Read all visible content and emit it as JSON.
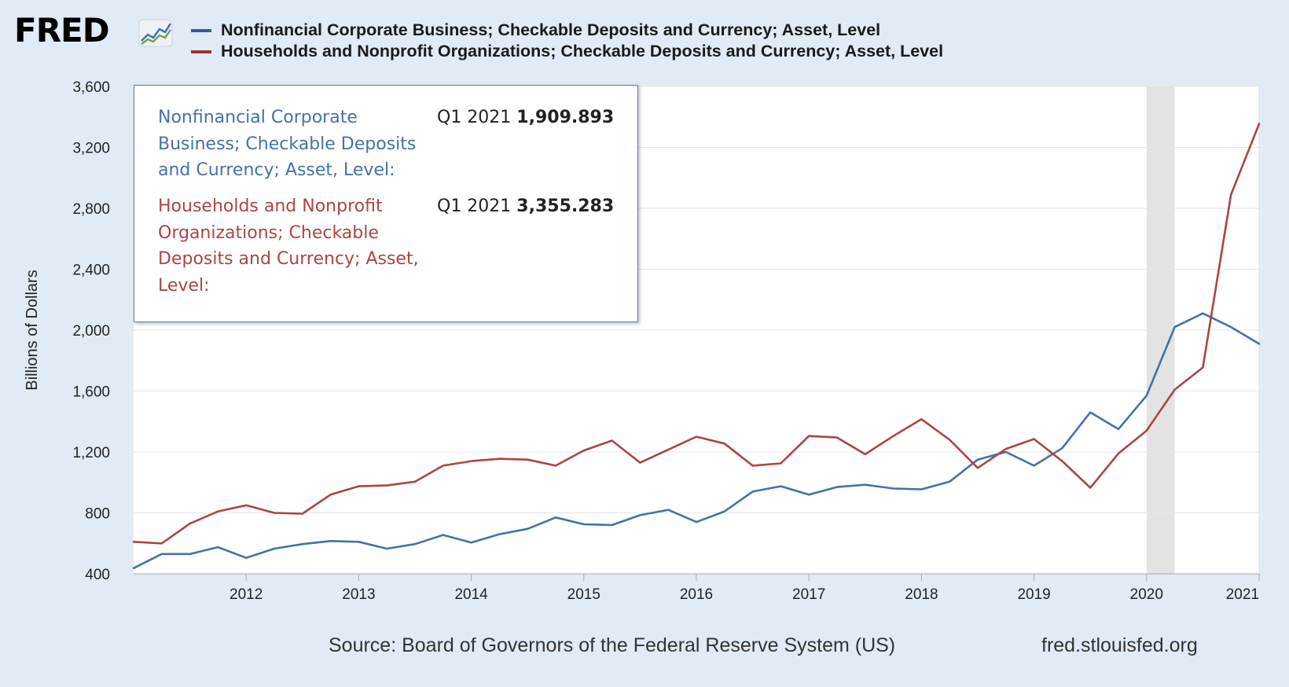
{
  "header": {
    "logo_text": "FRED",
    "logo_icon": "line-graph-icon"
  },
  "chart_data": {
    "type": "line",
    "title": "",
    "xlabel": "",
    "ylabel": "Billions of Dollars",
    "xlim": [
      2011.0,
      2021.0
    ],
    "ylim": [
      400,
      3600
    ],
    "yticks": [
      400,
      800,
      1200,
      1600,
      2000,
      2400,
      2800,
      3200,
      3600
    ],
    "ytick_labels": [
      "400",
      "800",
      "1,200",
      "1,600",
      "2,000",
      "2,400",
      "2,800",
      "3,200",
      "3,600"
    ],
    "xticks": [
      2012,
      2013,
      2014,
      2015,
      2016,
      2017,
      2018,
      2019,
      2020,
      2021
    ],
    "xtick_labels": [
      "2012",
      "2013",
      "2014",
      "2015",
      "2016",
      "2017",
      "2018",
      "2019",
      "2020",
      "2021"
    ],
    "grid": true,
    "legend_position": "top",
    "recession_shading": {
      "start": 2020.0,
      "end": 2020.25,
      "color": "#e3e3e3"
    },
    "x": [
      2011.0,
      2011.25,
      2011.5,
      2011.75,
      2012.0,
      2012.25,
      2012.5,
      2012.75,
      2013.0,
      2013.25,
      2013.5,
      2013.75,
      2014.0,
      2014.25,
      2014.5,
      2014.75,
      2015.0,
      2015.25,
      2015.5,
      2015.75,
      2016.0,
      2016.25,
      2016.5,
      2016.75,
      2017.0,
      2017.25,
      2017.5,
      2017.75,
      2018.0,
      2018.25,
      2018.5,
      2018.75,
      2019.0,
      2019.25,
      2019.5,
      2019.75,
      2020.0,
      2020.25,
      2020.5,
      2020.75,
      2021.0
    ],
    "series": [
      {
        "name": "Nonfinancial Corporate Business; Checkable Deposits and Currency; Asset, Level",
        "color": "#4572a7",
        "values": [
          437,
          530,
          530,
          575,
          505,
          565,
          595,
          615,
          610,
          565,
          595,
          655,
          605,
          660,
          695,
          770,
          725,
          720,
          785,
          820,
          740,
          810,
          940,
          975,
          920,
          970,
          985,
          960,
          955,
          1005,
          1150,
          1200,
          1110,
          1225,
          1460,
          1350,
          1570,
          2020,
          2110,
          2020,
          1910
        ]
      },
      {
        "name": "Households and Nonprofit Organizations; Checkable Deposits and Currency; Asset, Level",
        "color": "#aa4643",
        "values": [
          610,
          600,
          730,
          810,
          850,
          800,
          795,
          920,
          975,
          980,
          1005,
          1110,
          1140,
          1155,
          1150,
          1110,
          1210,
          1275,
          1130,
          1215,
          1300,
          1255,
          1110,
          1125,
          1305,
          1295,
          1185,
          1305,
          1415,
          1280,
          1095,
          1220,
          1285,
          1140,
          965,
          1190,
          1340,
          1610,
          1755,
          2890,
          3355
        ]
      }
    ]
  },
  "tooltip": {
    "items": [
      {
        "name": "Nonfinancial Corporate Business; Checkable Deposits and Currency; Asset, Level:",
        "period": "Q1 2021",
        "value": "1,909.893",
        "color": "#4572a7"
      },
      {
        "name": "Households and Nonprofit Organizations; Checkable Deposits and Currency; Asset, Level:",
        "period": "Q1 2021",
        "value": "3,355.283",
        "color": "#aa4643"
      }
    ]
  },
  "footer": {
    "source": "Source: Board of Governors of the Federal Reserve System (US)",
    "site": "fred.stlouisfed.org"
  }
}
